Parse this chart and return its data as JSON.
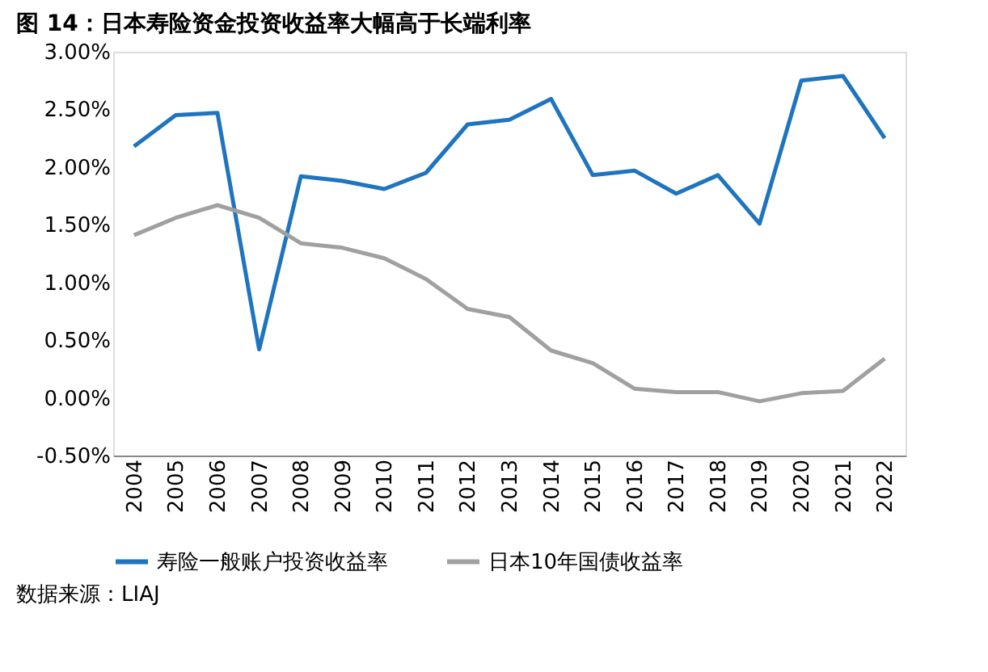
{
  "chart_data": {
    "type": "line",
    "title": "图 14：日本寿险资金投资收益率大幅高于长端利率",
    "categories": [
      "2004",
      "2005",
      "2006",
      "2007",
      "2008",
      "2009",
      "2010",
      "2011",
      "2012",
      "2013",
      "2014",
      "2015",
      "2016",
      "2017",
      "2018",
      "2019",
      "2020",
      "2021",
      "2022"
    ],
    "series": [
      {
        "name": "寿险一般账户投资收益率",
        "color": "#1f74c0",
        "values": [
          2.18,
          2.45,
          2.47,
          0.42,
          1.92,
          1.88,
          1.81,
          1.95,
          2.37,
          2.41,
          2.59,
          1.93,
          1.97,
          1.77,
          1.93,
          1.51,
          2.75,
          2.79,
          2.25
        ]
      },
      {
        "name": "日本10年国债收益率",
        "color": "#a0a0a0",
        "values": [
          1.41,
          1.56,
          1.67,
          1.56,
          1.34,
          1.3,
          1.21,
          1.03,
          0.77,
          0.7,
          0.41,
          0.3,
          0.08,
          0.05,
          0.05,
          -0.03,
          0.04,
          0.06,
          0.34
        ]
      }
    ],
    "ylim": [
      -0.5,
      3.0
    ],
    "yticks": [
      {
        "value": -0.5,
        "label": "-0.50%"
      },
      {
        "value": 0,
        "label": "0.00%"
      },
      {
        "value": 0.5,
        "label": "0.50%"
      },
      {
        "value": 1.0,
        "label": "1.00%"
      },
      {
        "value": 1.5,
        "label": "1.50%"
      },
      {
        "value": 2.0,
        "label": "2.00%"
      },
      {
        "value": 2.5,
        "label": "2.50%"
      },
      {
        "value": 3.0,
        "label": "3.00%"
      }
    ],
    "grid": false,
    "legend": "bottom",
    "marker": "none",
    "line_style": "solid",
    "annotations": [
      "数据来源：LIAJ"
    ]
  }
}
